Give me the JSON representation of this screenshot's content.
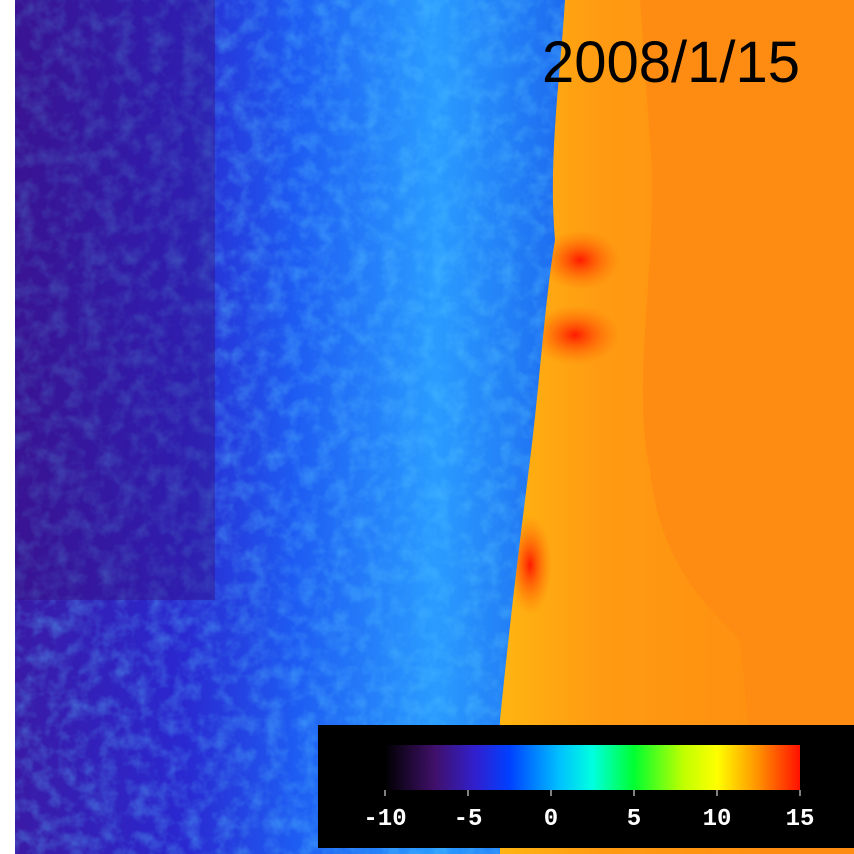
{
  "date": "2008/1/15",
  "colorbar": {
    "range": [
      -10,
      15
    ],
    "ticks": [
      -10,
      -5,
      0,
      5,
      10,
      15
    ]
  }
}
